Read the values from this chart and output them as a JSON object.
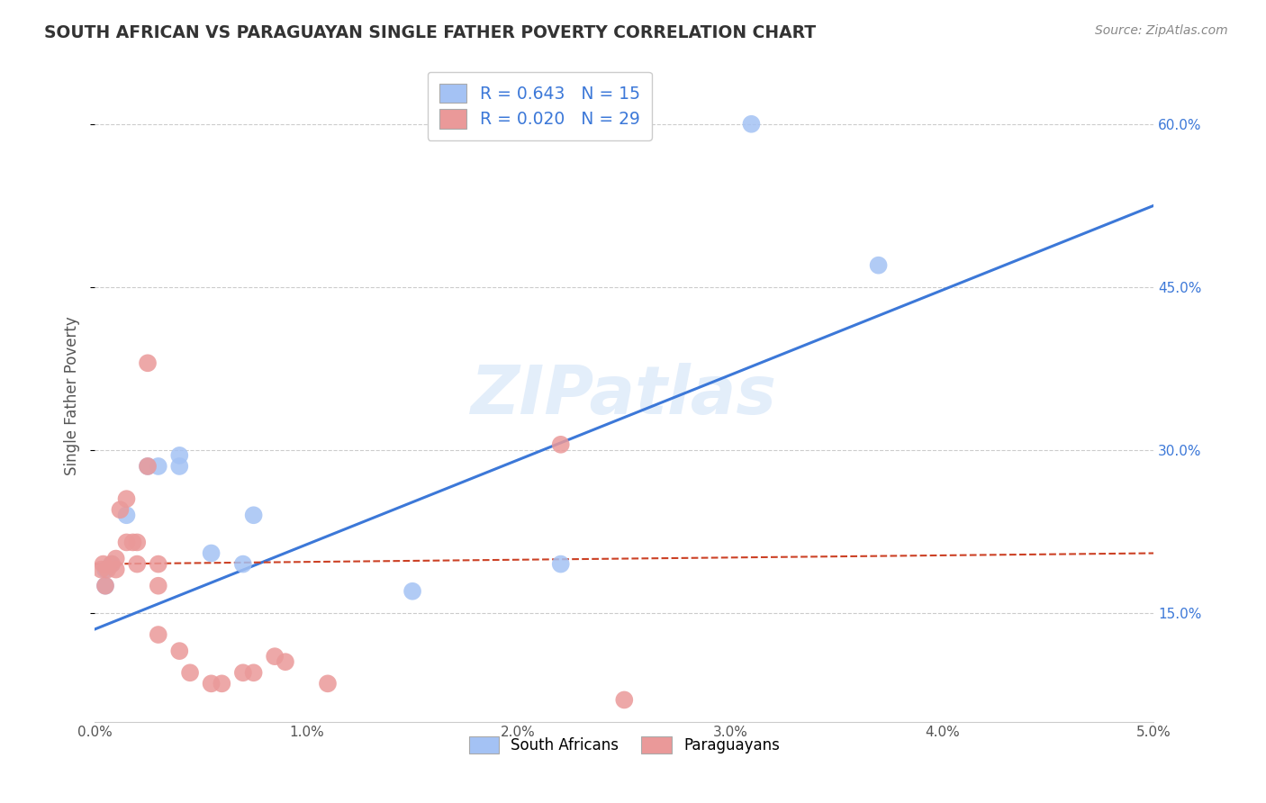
{
  "title": "SOUTH AFRICAN VS PARAGUAYAN SINGLE FATHER POVERTY CORRELATION CHART",
  "source": "Source: ZipAtlas.com",
  "ylabel": "Single Father Poverty",
  "xlim": [
    0.0,
    0.05
  ],
  "ylim": [
    0.05,
    0.65
  ],
  "yticks": [
    0.15,
    0.3,
    0.45,
    0.6
  ],
  "ytick_labels": [
    "15.0%",
    "30.0%",
    "45.0%",
    "60.0%"
  ],
  "xticks": [
    0.0,
    0.01,
    0.02,
    0.03,
    0.04,
    0.05
  ],
  "xtick_labels": [
    "0.0%",
    "1.0%",
    "2.0%",
    "3.0%",
    "4.0%",
    "5.0%"
  ],
  "legend_label_blue": "South Africans",
  "legend_label_pink": "Paraguayans",
  "blue_color": "#a4c2f4",
  "pink_color": "#ea9999",
  "blue_line_color": "#3c78d8",
  "pink_line_color": "#cc4125",
  "watermark": "ZIPatlas",
  "blue_points_x": [
    0.0005,
    0.0005,
    0.0008,
    0.0015,
    0.0025,
    0.003,
    0.004,
    0.004,
    0.0055,
    0.007,
    0.0075,
    0.015,
    0.022,
    0.031,
    0.037
  ],
  "blue_points_y": [
    0.175,
    0.19,
    0.195,
    0.24,
    0.285,
    0.285,
    0.295,
    0.285,
    0.205,
    0.195,
    0.24,
    0.17,
    0.195,
    0.6,
    0.47
  ],
  "pink_points_x": [
    0.0003,
    0.0004,
    0.0005,
    0.0006,
    0.0008,
    0.001,
    0.001,
    0.0012,
    0.0015,
    0.0015,
    0.0018,
    0.002,
    0.002,
    0.0025,
    0.0025,
    0.003,
    0.003,
    0.003,
    0.004,
    0.0045,
    0.0055,
    0.006,
    0.007,
    0.0075,
    0.0085,
    0.009,
    0.011,
    0.022,
    0.025
  ],
  "pink_points_y": [
    0.19,
    0.195,
    0.175,
    0.19,
    0.195,
    0.19,
    0.2,
    0.245,
    0.215,
    0.255,
    0.215,
    0.195,
    0.215,
    0.38,
    0.285,
    0.195,
    0.175,
    0.13,
    0.115,
    0.095,
    0.085,
    0.085,
    0.095,
    0.095,
    0.11,
    0.105,
    0.085,
    0.305,
    0.07
  ],
  "background_color": "#ffffff",
  "grid_color": "#cccccc",
  "blue_line_y0": 0.135,
  "blue_line_y1": 0.525,
  "pink_line_y0": 0.195,
  "pink_line_y1": 0.205
}
